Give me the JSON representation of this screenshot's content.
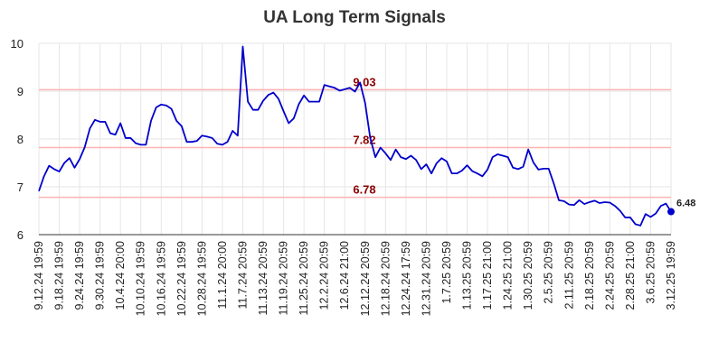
{
  "chart_data": {
    "type": "line",
    "title": "UA Long Term Signals",
    "xlabel": "",
    "ylabel": "",
    "ylim": [
      6,
      10
    ],
    "yticks": [
      6,
      7,
      8,
      9,
      10
    ],
    "grid": true,
    "colors": {
      "line": "#0000cc",
      "level_line": "#ffb3b3",
      "level_text": "#8b0000",
      "grid": "#e6e6e6"
    },
    "x_tick_labels": [
      "9.12.24 19:59",
      "9.18.24 19:59",
      "9.24.24 19:59",
      "9.30.24 19:59",
      "10.4.24 20:00",
      "10.10.24 19:59",
      "10.16.24 19:59",
      "10.22.24 19:59",
      "10.28.24 19:59",
      "11.1.24 20:00",
      "11.7.24 20:59",
      "11.13.24 20:59",
      "11.19.24 20:59",
      "11.25.24 20:59",
      "12.2.24 20:59",
      "12.6.24 21:00",
      "12.12.24 20:59",
      "12.18.24 20:59",
      "12.24.24 17:59",
      "12.31.24 20:59",
      "1.7.25 20:59",
      "1.13.25 20:59",
      "1.17.25 21:00",
      "1.24.25 21:00",
      "1.30.25 20:59",
      "2.5.25 20:59",
      "2.11.25 20:59",
      "2.18.25 20:59",
      "2.24.25 20:59",
      "2.28.25 21:00",
      "3.6.25 20:59",
      "3.12.25 19:59"
    ],
    "levels": [
      {
        "value": 9.03,
        "label": "9.03"
      },
      {
        "value": 7.82,
        "label": "7.82"
      },
      {
        "value": 6.78,
        "label": "6.78"
      }
    ],
    "last_value_label": "6.48",
    "series": [
      {
        "values": [
          6.91,
          7.22,
          7.44,
          7.37,
          7.32,
          7.5,
          7.6,
          7.4,
          7.58,
          7.83,
          8.22,
          8.4,
          8.36,
          8.36,
          8.12,
          8.09,
          8.33,
          8.02,
          8.02,
          7.91,
          7.88,
          7.88,
          8.38,
          8.66,
          8.72,
          8.7,
          8.63,
          8.38,
          8.27,
          7.94,
          7.94,
          7.96,
          8.07,
          8.05,
          8.02,
          7.9,
          7.88,
          7.94,
          8.17,
          8.07,
          9.93,
          8.78,
          8.61,
          8.61,
          8.8,
          8.92,
          8.97,
          8.84,
          8.58,
          8.33,
          8.43,
          8.73,
          8.91,
          8.78,
          8.78,
          8.78,
          9.13,
          9.1,
          9.07,
          9.01,
          9.04,
          9.07,
          8.99,
          9.18,
          8.75,
          8.02,
          7.62,
          7.82,
          7.7,
          7.56,
          7.78,
          7.62,
          7.58,
          7.65,
          7.56,
          7.37,
          7.47,
          7.28,
          7.49,
          7.6,
          7.53,
          7.28,
          7.28,
          7.34,
          7.45,
          7.33,
          7.28,
          7.22,
          7.36,
          7.62,
          7.68,
          7.65,
          7.62,
          7.4,
          7.37,
          7.42,
          7.78,
          7.51,
          7.36,
          7.38,
          7.38,
          7.07,
          6.72,
          6.7,
          6.63,
          6.62,
          6.72,
          6.64,
          6.68,
          6.71,
          6.66,
          6.68,
          6.67,
          6.6,
          6.5,
          6.36,
          6.36,
          6.22,
          6.19,
          6.43,
          6.37,
          6.44,
          6.6,
          6.65,
          6.48
        ]
      }
    ]
  }
}
